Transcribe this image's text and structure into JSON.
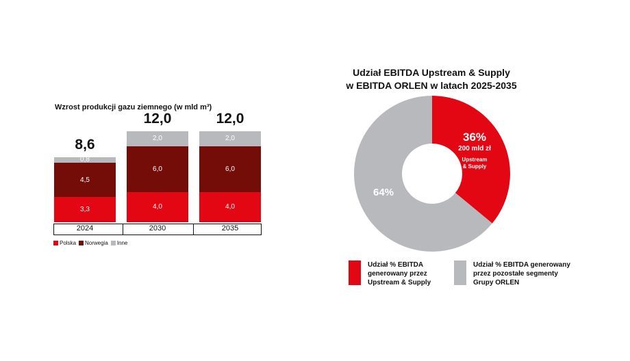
{
  "colors": {
    "polska": "#e30613",
    "norwegia": "#740d08",
    "inne": "#b7b9bc",
    "text": "#111111"
  },
  "chart_data": [
    {
      "type": "bar",
      "stacked": true,
      "title": "Wzrost produkcji gazu ziemnego (w mld m³)",
      "categories": [
        "2024",
        "2030",
        "2035"
      ],
      "totals": [
        "8,6",
        "12,0",
        "12,0"
      ],
      "series": [
        {
          "name": "Polska",
          "color": "#e30613",
          "values": [
            3.3,
            4.0,
            4.0
          ],
          "labels": [
            "3,3",
            "4,0",
            "4,0"
          ]
        },
        {
          "name": "Norwegia",
          "color": "#740d08",
          "values": [
            4.5,
            6.0,
            6.0
          ],
          "labels": [
            "4,5",
            "6,0",
            "6,0"
          ]
        },
        {
          "name": "Inne",
          "color": "#b7b9bc",
          "values": [
            0.8,
            2.0,
            2.0
          ],
          "labels": [
            "0,8",
            "2,0",
            "2,0"
          ]
        }
      ],
      "ylim": [
        0,
        12
      ],
      "legend": [
        "Polska",
        "Norwegia",
        "Inne"
      ]
    },
    {
      "type": "pie",
      "donut": true,
      "title_lines": [
        "Udział EBITDA Upstream & Supply",
        "w EBITDA ORLEN w latach 2025-2035"
      ],
      "slices": [
        {
          "name": "Upstream & Supply",
          "value": 36,
          "label": "36%",
          "sublabel": "200 mld zł",
          "tag_lines": [
            "Upstream",
            "& Supply"
          ],
          "color": "#e30613"
        },
        {
          "name": "Pozostałe segmenty",
          "value": 64,
          "label": "64%",
          "color": "#b7b9bc"
        }
      ],
      "legend": [
        {
          "color": "#e30613",
          "lines": [
            "Udział % EBITDA",
            "generowany przez",
            "Upstream & Supply"
          ]
        },
        {
          "color": "#b7b9bc",
          "lines": [
            "Udział % EBITDA generowany",
            "przez pozostałe segmenty",
            "Grupy ORLEN"
          ]
        }
      ]
    }
  ]
}
